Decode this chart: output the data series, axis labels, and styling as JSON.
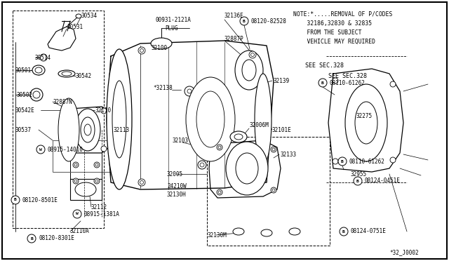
{
  "bg_color": "#ffffff",
  "border_color": "#000000",
  "fig_width": 6.4,
  "fig_height": 3.72,
  "dpi": 100,
  "note_lines": [
    "NOTE:*.....REMOVAL OF P/CODES",
    "    32186,32830 & 32835",
    "    FROM THE SUBJECT",
    "    VEHICLE MAY REQUIRED"
  ],
  "see_sec_1": "SEE SEC.328",
  "see_sec_2": "SEE SEC.328",
  "diagram_id": "*32_J0002"
}
